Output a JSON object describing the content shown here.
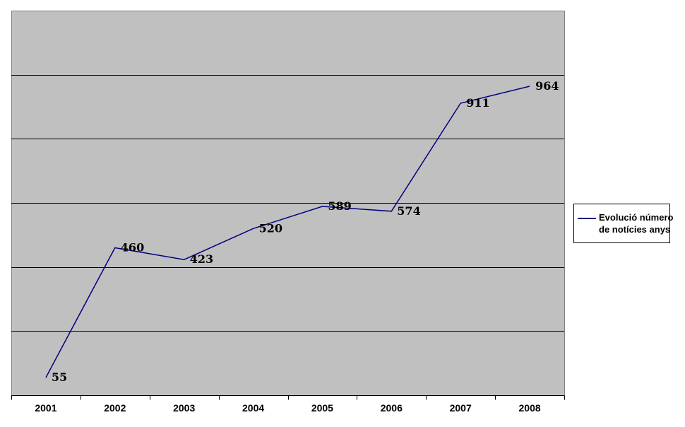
{
  "chart_data": {
    "type": "line",
    "title": "",
    "xlabel": "",
    "ylabel": "",
    "categories": [
      "2001",
      "2002",
      "2003",
      "2004",
      "2005",
      "2006",
      "2007",
      "2008"
    ],
    "series": [
      {
        "name": "Evolució número de notícies anys",
        "values": [
          55,
          460,
          423,
          520,
          589,
          574,
          911,
          964
        ],
        "color": "#000080"
      }
    ],
    "data_labels": [
      55,
      460,
      423,
      520,
      589,
      574,
      911,
      964
    ],
    "ylim": [
      0,
      1200
    ],
    "gridline_step": 200,
    "grid": true,
    "y_tick_labels_visible": false,
    "legend_position": "right",
    "plot_bg_color": "#c0c0c0",
    "plot_border_color": "#808080",
    "gridline_color": "#000000",
    "axis_color": "#000000",
    "text_color": "#000000"
  },
  "legend": {
    "lines": [
      "Evolució número",
      "de notícies anys"
    ],
    "sample_color": "#000080"
  }
}
